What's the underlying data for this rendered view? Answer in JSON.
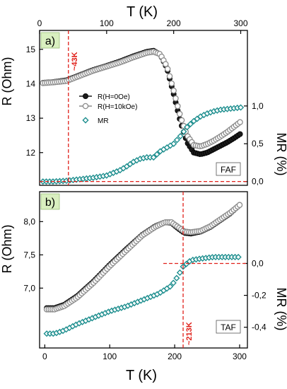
{
  "colors": {
    "r_zero": "#1a1a1a",
    "r_field": "#8c8c8c",
    "mr": "#1f8f8f",
    "guide": "#e0201a",
    "panel_label_bg": "#d9efc0"
  },
  "chart_data": [
    {
      "panel": "a)",
      "type": "scatter",
      "xlabel": "T (K)",
      "xlim": [
        0,
        310
      ],
      "x_ticks": [
        "0",
        "100",
        "200",
        "300"
      ],
      "ylabel_left": "R (Ohm)",
      "ylim_left": [
        11.05,
        15.55
      ],
      "y_ticks_left": [
        "12",
        "13",
        "14",
        "15"
      ],
      "ylabel_right": "MR (%)",
      "ylim_right": [
        -0.05,
        2.0
      ],
      "y_ticks_right": [
        "0,0",
        "0,5",
        "1,0"
      ],
      "legend_placement": "center-left",
      "annotations": [
        {
          "text": "~43K",
          "at_x": 43
        },
        {
          "text": "FAF"
        }
      ],
      "guides": {
        "vertical_x": 43,
        "horizontal_mr": 0.0
      },
      "series": [
        {
          "name": "R(H=0Oe)",
          "axis": "left",
          "marker": "filled-circle",
          "x": [
            5,
            20,
            40,
            60,
            80,
            100,
            120,
            140,
            160,
            170,
            180,
            190,
            200,
            210,
            220,
            230,
            240,
            250,
            260,
            270,
            280,
            290,
            300
          ],
          "y": [
            14.03,
            14.05,
            14.1,
            14.25,
            14.4,
            14.52,
            14.65,
            14.8,
            14.93,
            14.96,
            14.85,
            14.45,
            13.7,
            12.9,
            12.3,
            12.0,
            11.95,
            12.0,
            12.1,
            12.2,
            12.3,
            12.42,
            12.55
          ]
        },
        {
          "name": "R(H=10kOe)",
          "axis": "left",
          "marker": "open-circle",
          "x": [
            5,
            20,
            40,
            60,
            80,
            100,
            120,
            140,
            160,
            170,
            180,
            190,
            200,
            210,
            220,
            230,
            240,
            250,
            260,
            270,
            280,
            290,
            300
          ],
          "y": [
            14.02,
            14.04,
            14.08,
            14.23,
            14.38,
            14.5,
            14.62,
            14.77,
            14.9,
            14.93,
            14.86,
            14.5,
            13.8,
            13.05,
            12.5,
            12.22,
            12.18,
            12.25,
            12.35,
            12.47,
            12.6,
            12.75,
            12.9
          ]
        },
        {
          "name": "MR",
          "axis": "right",
          "marker": "open-diamond",
          "x": [
            5,
            20,
            40,
            60,
            80,
            100,
            120,
            130,
            140,
            150,
            160,
            170,
            180,
            190,
            200,
            210,
            220,
            230,
            240,
            250,
            260,
            270,
            280,
            290,
            300
          ],
          "y": [
            0.0,
            0.0,
            0.01,
            0.03,
            0.05,
            0.08,
            0.15,
            0.2,
            0.26,
            0.3,
            0.32,
            0.32,
            0.4,
            0.45,
            0.5,
            0.6,
            0.72,
            0.8,
            0.86,
            0.9,
            0.93,
            0.95,
            0.96,
            0.97,
            0.98
          ]
        }
      ]
    },
    {
      "panel": "b)",
      "type": "scatter",
      "xlabel": "T (K)",
      "xlim": [
        -8,
        312
      ],
      "x_ticks": [
        "0",
        "100",
        "200",
        "300"
      ],
      "ylabel_left": "R (Ohm)",
      "ylim_left": [
        6.1,
        8.45
      ],
      "y_ticks_left": [
        "7,0",
        "7,5",
        "8,0"
      ],
      "ylabel_right": "MR (%)",
      "ylim_right": [
        -0.53,
        0.45
      ],
      "y_ticks_right": [
        "0,0",
        "-0,2",
        "-0,4"
      ],
      "annotations": [
        {
          "text": "~213K",
          "at_x": 213
        },
        {
          "text": "TAF"
        }
      ],
      "guides": {
        "vertical_x": 213,
        "horizontal_mr": 0.0
      },
      "series": [
        {
          "name": "R(H=0Oe)",
          "axis": "left",
          "marker": "filled-circle",
          "x": [
            3,
            15,
            30,
            50,
            75,
            100,
            125,
            150,
            170,
            185,
            195,
            205,
            215,
            225,
            240,
            255,
            270,
            285,
            300
          ],
          "y": [
            6.7,
            6.7,
            6.75,
            6.88,
            7.1,
            7.35,
            7.58,
            7.8,
            7.93,
            7.99,
            7.98,
            7.9,
            7.83,
            7.82,
            7.85,
            7.92,
            8.02,
            8.12,
            8.25
          ]
        },
        {
          "name": "R(H=10kOe)",
          "axis": "left",
          "marker": "open-circle",
          "x": [
            3,
            15,
            30,
            50,
            75,
            100,
            125,
            150,
            170,
            185,
            195,
            205,
            215,
            225,
            240,
            255,
            270,
            285,
            300
          ],
          "y": [
            6.68,
            6.68,
            6.73,
            6.86,
            7.08,
            7.33,
            7.56,
            7.79,
            7.92,
            7.99,
            7.99,
            7.92,
            7.85,
            7.84,
            7.86,
            7.93,
            8.03,
            8.13,
            8.25
          ]
        },
        {
          "name": "MR",
          "axis": "right",
          "marker": "open-diamond",
          "x": [
            3,
            15,
            30,
            50,
            75,
            100,
            125,
            150,
            175,
            195,
            205,
            213,
            225,
            240,
            260,
            280,
            300
          ],
          "y": [
            -0.44,
            -0.44,
            -0.42,
            -0.38,
            -0.34,
            -0.3,
            -0.27,
            -0.23,
            -0.19,
            -0.14,
            -0.08,
            -0.02,
            0.02,
            0.03,
            0.04,
            0.04,
            0.04
          ]
        }
      ]
    }
  ]
}
